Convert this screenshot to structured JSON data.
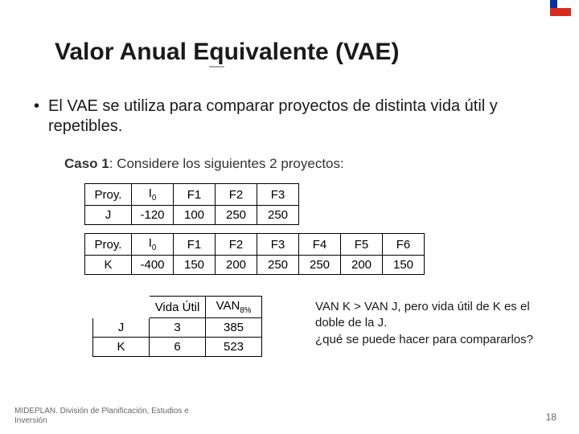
{
  "title_prefix": "Valor Anual E",
  "title_under": "q",
  "title_suffix": "uivalente  (VAE)",
  "bullet_text": "El VAE se utiliza para comparar proyectos de distinta vida útil y repetibles.",
  "caso_bold": "Caso 1",
  "caso_rest": ": Considere los siguientes 2 proyectos:",
  "tJ": {
    "h": [
      "Proy.",
      "I",
      "F1",
      "F2",
      "F3"
    ],
    "r": [
      "J",
      "-120",
      "100",
      "250",
      "250"
    ]
  },
  "tK": {
    "h": [
      "Proy.",
      "I",
      "F1",
      "F2",
      "F3",
      "F4",
      "F5",
      "F6"
    ],
    "r": [
      "K",
      "-400",
      "150",
      "200",
      "250",
      "250",
      "200",
      "150"
    ]
  },
  "tS": {
    "h_vida": "Vida Útil",
    "h_van": "VAN",
    "h_van_sub": "8%",
    "rJ": [
      "J",
      "3",
      "385"
    ],
    "rK": [
      "K",
      "6",
      "523"
    ]
  },
  "note_l1": "VAN K > VAN J, pero vida útil de K es el doble de la J.",
  "note_l2": "¿qué se puede hacer para compararlos?",
  "footer_text": "MIDEPLAN. División de Planificación, Estudios e Inversión",
  "page_num": "18",
  "flag_colors": {
    "blue": "#0033a0",
    "white": "#ffffff",
    "red": "#d52b1e"
  }
}
